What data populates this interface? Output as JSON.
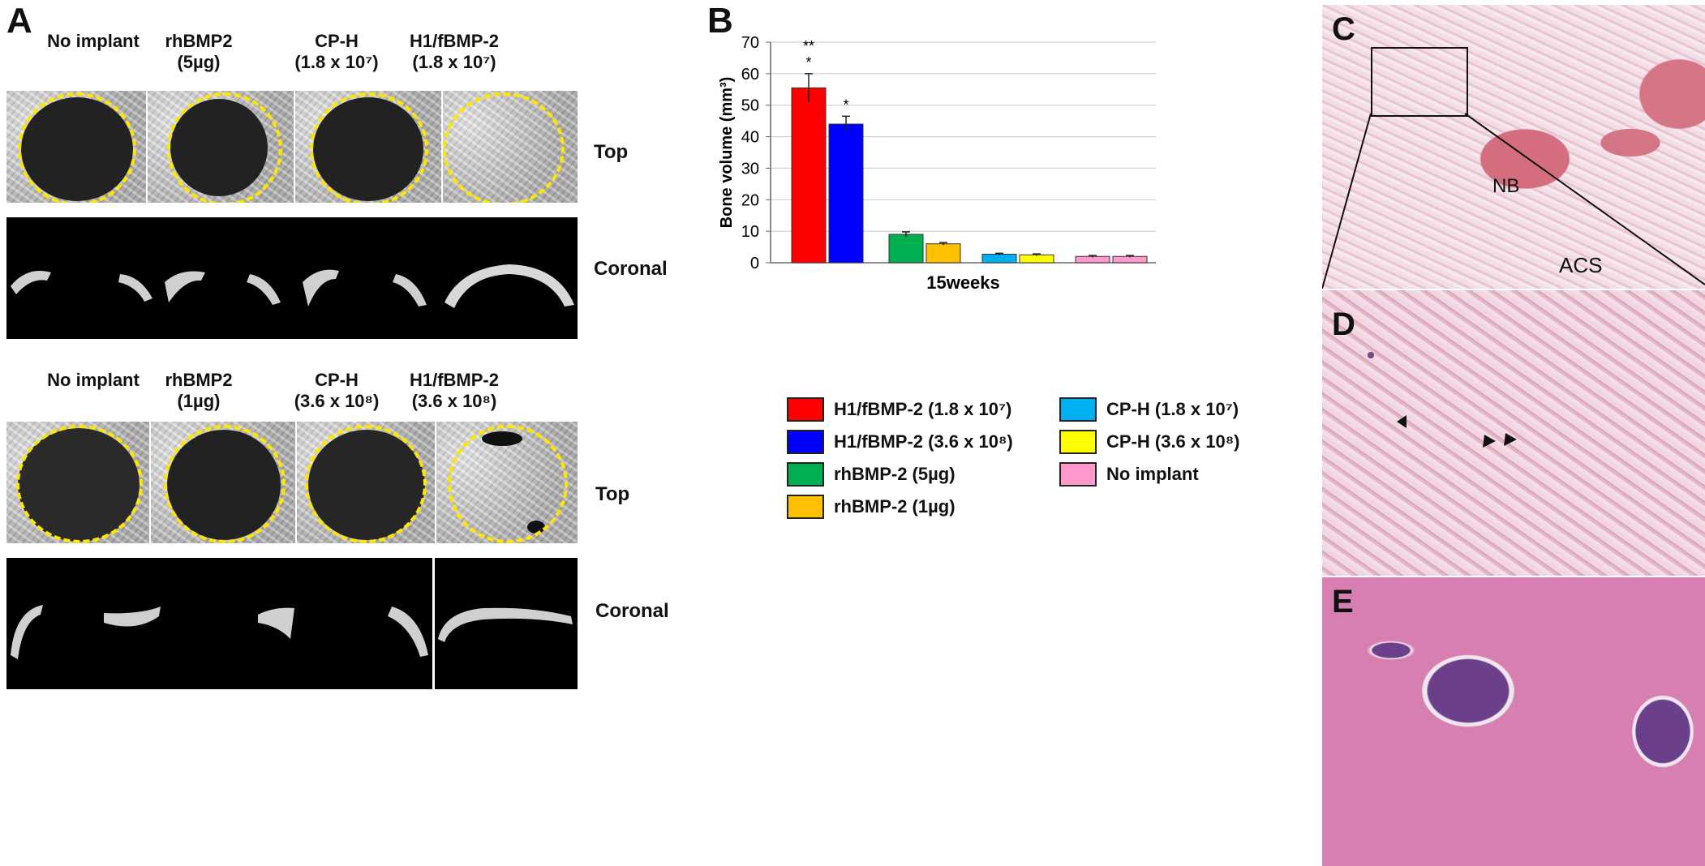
{
  "panels": {
    "a": "A",
    "b": "B",
    "c": "C",
    "d": "D",
    "e": "E"
  },
  "panel_a": {
    "columns_top": [
      "No implant",
      "rhBMP2\n(5µg)",
      "CP-H\n(1.8 x 10⁷)",
      "H1/fBMP-2\n(1.8 x 10⁷)"
    ],
    "columns_bottom": [
      "No implant",
      "rhBMP2\n(1µg)",
      "CP-H\n(3.6 x 10⁸)",
      "H1/fBMP-2\n(3.6 x 10⁸)"
    ],
    "row_top": "Top",
    "row_coronal": "Coronal"
  },
  "panel_c": {
    "nb": "NB",
    "acs": "ACS"
  },
  "chart_data": {
    "type": "bar",
    "xlabel": "15weeks",
    "ylabel": "Bone volume (mm³)",
    "ylim": [
      0,
      70
    ],
    "yticks": [
      0,
      10,
      20,
      30,
      40,
      50,
      60,
      70
    ],
    "grid": true,
    "categories": [
      "15weeks"
    ],
    "series": [
      {
        "name": "H1/fBMP-2 (1.8 x 10⁷)",
        "value": 55.5,
        "error": 4.5,
        "color": "#ff0000",
        "annotation": "**\n*"
      },
      {
        "name": "H1/fBMP-2 (3.6 x 10⁸)",
        "value": 44,
        "error": 2.5,
        "color": "#0000ff",
        "annotation": "*"
      },
      {
        "name": "rhBMP-2 (5µg)",
        "value": 9,
        "error": 0.8,
        "color": "#00b050",
        "annotation": ""
      },
      {
        "name": "rhBMP-2 (1µg)",
        "value": 6,
        "error": 0.4,
        "color": "#ffc000",
        "annotation": ""
      },
      {
        "name": "CP-H (1.8 x 10⁷)",
        "value": 2.7,
        "error": 0.3,
        "color": "#00b0f0",
        "annotation": ""
      },
      {
        "name": "CP-H (3.6 x 10⁸)",
        "value": 2.5,
        "error": 0.3,
        "color": "#ffff00",
        "annotation": ""
      },
      {
        "name": "No implant",
        "value": 2,
        "error": 0.3,
        "color": "#ff99cc",
        "annotation": ""
      },
      {
        "name": "No implant",
        "value": 2,
        "error": 0.3,
        "color": "#ff99cc",
        "annotation": ""
      }
    ],
    "legend": [
      {
        "label": "H1/fBMP-2 (1.8 x 10⁷)",
        "color": "#ff0000"
      },
      {
        "label": "H1/fBMP-2 (3.6 x 10⁸)",
        "color": "#0000ff"
      },
      {
        "label": "rhBMP-2 (5µg)",
        "color": "#00b050"
      },
      {
        "label": "rhBMP-2 (1µg)",
        "color": "#ffc000"
      },
      {
        "label": "CP-H (1.8 x 10⁷)",
        "color": "#00b0f0"
      },
      {
        "label": "CP-H (3.6 x 10⁸)",
        "color": "#ffff00"
      },
      {
        "label": "No implant",
        "color": "#ff99cc"
      }
    ]
  }
}
